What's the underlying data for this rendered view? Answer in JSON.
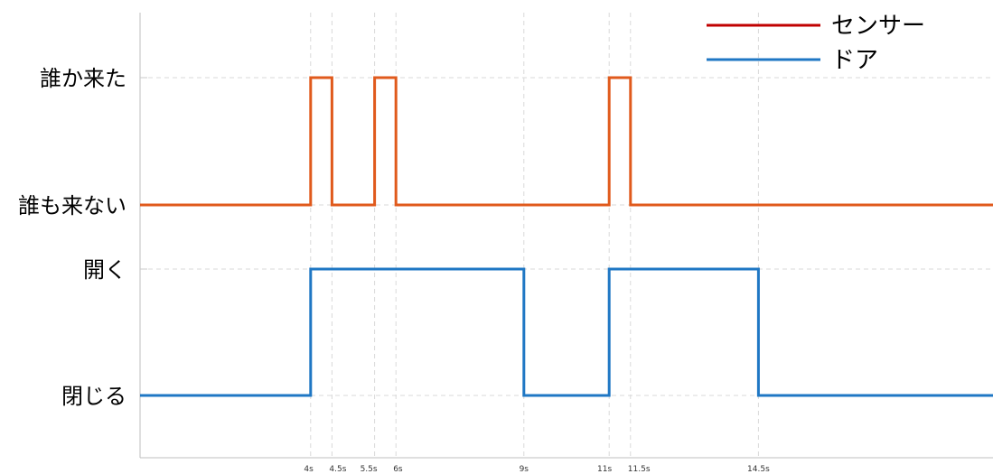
{
  "chart_data": {
    "type": "line",
    "step": true,
    "grid": true,
    "legend_position": "top-right",
    "x_range": [
      0,
      20
    ],
    "x_tick_values": [
      4,
      4.5,
      5.5,
      6,
      9,
      11,
      11.5,
      14.5
    ],
    "x_tick_labels": [
      "4s",
      "4.5s",
      "5.5s",
      "6s",
      "9s",
      "11s",
      "11.5s",
      "14.5s"
    ],
    "y_levels": [
      {
        "label": "誰か来た"
      },
      {
        "label": "誰も来ない"
      },
      {
        "label": "開く"
      },
      {
        "label": "閉じる"
      }
    ],
    "legend": [
      {
        "label": "センサー",
        "color": "#c00000"
      },
      {
        "label": "ドア",
        "color": "#1f77c4"
      }
    ],
    "series": [
      {
        "name": "センサー",
        "color": "#e05a1c",
        "low_level": "誰も来ない",
        "high_level": "誰か来た",
        "pulses": [
          [
            4,
            4.5
          ],
          [
            5.5,
            6
          ],
          [
            11,
            11.5
          ]
        ]
      },
      {
        "name": "ドア",
        "color": "#1f77c4",
        "low_level": "閉じる",
        "high_level": "開く",
        "pulses": [
          [
            4,
            9
          ],
          [
            11,
            14.5
          ]
        ]
      }
    ]
  }
}
